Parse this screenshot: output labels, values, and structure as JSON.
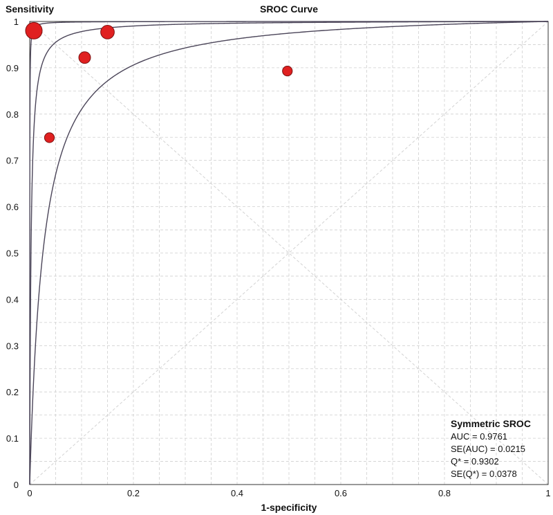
{
  "chart_data": {
    "type": "scatter",
    "title": "SROC Curve",
    "xlabel": "1-specificity",
    "ylabel": "Sensitivity",
    "xlim": [
      0,
      1
    ],
    "ylim": [
      0,
      1
    ],
    "grid": true,
    "x_ticks": [
      "0",
      "0.2",
      "0.4",
      "0.6",
      "0.8",
      "1"
    ],
    "x_tick_values": [
      0,
      0.2,
      0.4,
      0.6,
      0.8,
      1
    ],
    "y_ticks": [
      "0",
      "0.1",
      "0.2",
      "0.3",
      "0.4",
      "0.5",
      "0.6",
      "0.7",
      "0.8",
      "0.9",
      "1"
    ],
    "y_tick_values": [
      0,
      0.1,
      0.2,
      0.3,
      0.4,
      0.5,
      0.6,
      0.7,
      0.8,
      0.9,
      1
    ],
    "points": [
      {
        "x": 0.008,
        "y": 0.98,
        "weight": 5
      },
      {
        "x": 0.15,
        "y": 0.977,
        "weight": 3
      },
      {
        "x": 0.106,
        "y": 0.922,
        "weight": 2
      },
      {
        "x": 0.497,
        "y": 0.893,
        "weight": 1.2
      },
      {
        "x": 0.038,
        "y": 0.749,
        "weight": 1.2
      }
    ],
    "point_color": "#e02020",
    "curve_color": "#4a4458",
    "sroc_curves": [
      {
        "role": "upper",
        "log_dor": 9.0
      },
      {
        "role": "center",
        "log_dor": 6.0
      },
      {
        "role": "lower",
        "log_dor": 3.65
      }
    ],
    "diagonals": true,
    "legend_placement": "bottom-right",
    "stats": {
      "title": "Symmetric SROC",
      "lines": [
        "AUC = 0.9761",
        "SE(AUC) = 0.0215",
        "Q* = 0.9302",
        "SE(Q*) = 0.0378"
      ]
    }
  }
}
